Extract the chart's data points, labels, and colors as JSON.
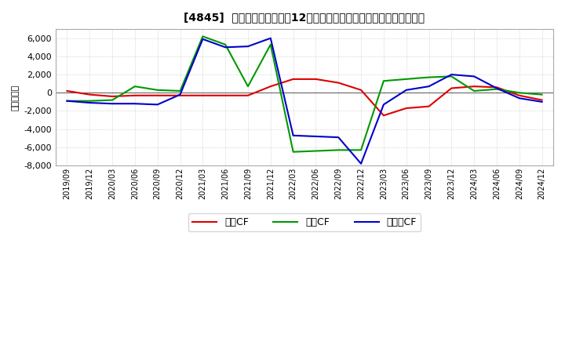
{
  "title": "[4845]  キャッシュフローの12か月移動合計の対前年同期増減額の推移",
  "ylabel": "（百万円）",
  "background_color": "#ffffff",
  "plot_bg_color": "#ffffff",
  "grid_color": "#cccccc",
  "ylim": [
    -8000,
    7000
  ],
  "yticks": [
    -8000,
    -6000,
    -4000,
    -2000,
    0,
    2000,
    4000,
    6000
  ],
  "legend_labels": [
    "営業CF",
    "投資CF",
    "フリーCF"
  ],
  "line_colors": [
    "#dd0000",
    "#009900",
    "#0000cc"
  ],
  "dates": [
    "2019/09",
    "2019/12",
    "2020/03",
    "2020/06",
    "2020/09",
    "2020/12",
    "2021/03",
    "2021/06",
    "2021/09",
    "2021/12",
    "2022/03",
    "2022/06",
    "2022/09",
    "2022/12",
    "2023/03",
    "2023/06",
    "2023/09",
    "2023/12",
    "2024/03",
    "2024/06",
    "2024/09",
    "2024/12"
  ],
  "operating_cf": [
    200,
    -200,
    -400,
    -300,
    -300,
    -300,
    -300,
    -300,
    -300,
    700,
    1500,
    1500,
    1100,
    300,
    -2500,
    -1700,
    -1500,
    500,
    700,
    600,
    -300,
    -800
  ],
  "investing_cf": [
    -900,
    -900,
    -800,
    700,
    300,
    200,
    6200,
    5300,
    700,
    5300,
    -6500,
    -6400,
    -6300,
    -6300,
    1300,
    1500,
    1700,
    1800,
    200,
    400,
    0,
    -200
  ],
  "free_cf": [
    -900,
    -1100,
    -1200,
    -1200,
    -1300,
    -200,
    5900,
    5000,
    5100,
    6000,
    -4700,
    -4800,
    -4900,
    -7800,
    -1300,
    300,
    700,
    2000,
    1800,
    500,
    -600,
    -1000
  ]
}
